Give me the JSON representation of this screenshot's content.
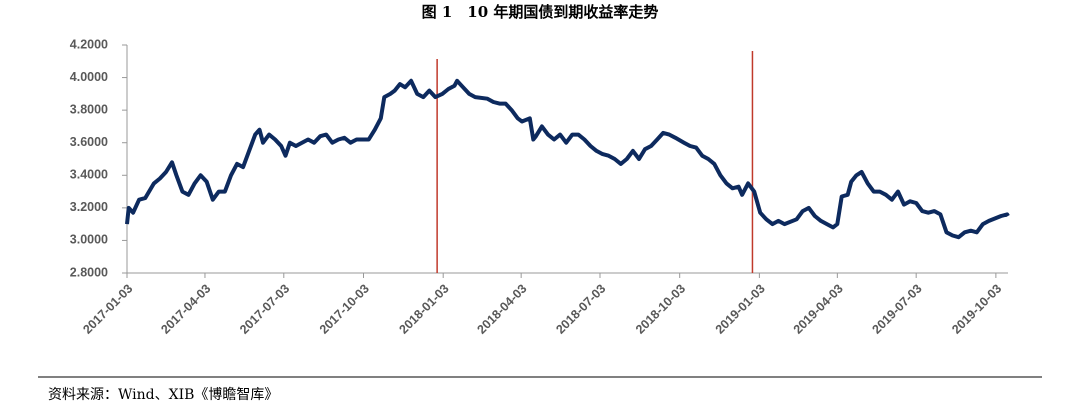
{
  "chart_data": {
    "type": "line",
    "title": "图 1　10 年期国债到期收益率走势",
    "source": "资料来源：Wind、XIB《博瞻智库》",
    "x": [
      "2017-01-03",
      "2017-01-05",
      "2017-01-10",
      "2017-01-17",
      "2017-01-24",
      "2017-02-03",
      "2017-02-10",
      "2017-02-17",
      "2017-02-24",
      "2017-03-01",
      "2017-03-08",
      "2017-03-15",
      "2017-03-22",
      "2017-03-29",
      "2017-04-05",
      "2017-04-12",
      "2017-04-19",
      "2017-04-26",
      "2017-05-03",
      "2017-05-10",
      "2017-05-17",
      "2017-05-24",
      "2017-05-31",
      "2017-06-05",
      "2017-06-09",
      "2017-06-16",
      "2017-06-23",
      "2017-06-30",
      "2017-07-05",
      "2017-07-10",
      "2017-07-17",
      "2017-07-24",
      "2017-07-31",
      "2017-08-07",
      "2017-08-14",
      "2017-08-21",
      "2017-08-28",
      "2017-09-04",
      "2017-09-11",
      "2017-09-18",
      "2017-09-25",
      "2017-10-09",
      "2017-10-16",
      "2017-10-23",
      "2017-10-27",
      "2017-11-03",
      "2017-11-08",
      "2017-11-14",
      "2017-11-20",
      "2017-11-27",
      "2017-12-04",
      "2017-12-11",
      "2017-12-18",
      "2017-12-25",
      "2018-01-02",
      "2018-01-09",
      "2018-01-16",
      "2018-01-19",
      "2018-01-26",
      "2018-02-02",
      "2018-02-09",
      "2018-02-23",
      "2018-03-02",
      "2018-03-09",
      "2018-03-16",
      "2018-03-23",
      "2018-03-30",
      "2018-04-04",
      "2018-04-13",
      "2018-04-17",
      "2018-04-20",
      "2018-04-27",
      "2018-05-04",
      "2018-05-11",
      "2018-05-18",
      "2018-05-25",
      "2018-06-01",
      "2018-06-08",
      "2018-06-15",
      "2018-06-22",
      "2018-06-29",
      "2018-07-06",
      "2018-07-13",
      "2018-07-20",
      "2018-07-27",
      "2018-08-03",
      "2018-08-10",
      "2018-08-17",
      "2018-08-24",
      "2018-08-31",
      "2018-09-07",
      "2018-09-14",
      "2018-09-21",
      "2018-09-28",
      "2018-10-08",
      "2018-10-15",
      "2018-10-22",
      "2018-10-29",
      "2018-11-05",
      "2018-11-12",
      "2018-11-19",
      "2018-11-26",
      "2018-12-03",
      "2018-12-10",
      "2018-12-14",
      "2018-12-21",
      "2018-12-28",
      "2019-01-04",
      "2019-01-11",
      "2019-01-18",
      "2019-01-25",
      "2019-02-01",
      "2019-02-15",
      "2019-02-22",
      "2019-03-01",
      "2019-03-08",
      "2019-03-15",
      "2019-03-22",
      "2019-03-29",
      "2019-04-03",
      "2019-04-08",
      "2019-04-15",
      "2019-04-19",
      "2019-04-25",
      "2019-05-01",
      "2019-05-08",
      "2019-05-15",
      "2019-05-22",
      "2019-05-29",
      "2019-06-05",
      "2019-06-12",
      "2019-06-19",
      "2019-06-26",
      "2019-07-03",
      "2019-07-10",
      "2019-07-17",
      "2019-07-24",
      "2019-07-31",
      "2019-08-07",
      "2019-08-14",
      "2019-08-21",
      "2019-08-28",
      "2019-09-04",
      "2019-09-11",
      "2019-09-18",
      "2019-09-25",
      "2019-10-09",
      "2019-10-16",
      "2019-10-17"
    ],
    "series": [
      {
        "color": "#0d2a5e",
        "values": [
          3.1,
          3.2,
          3.17,
          3.25,
          3.26,
          3.35,
          3.38,
          3.42,
          3.48,
          3.4,
          3.3,
          3.28,
          3.35,
          3.4,
          3.36,
          3.25,
          3.3,
          3.3,
          3.4,
          3.47,
          3.45,
          3.55,
          3.65,
          3.68,
          3.6,
          3.65,
          3.62,
          3.58,
          3.52,
          3.6,
          3.58,
          3.6,
          3.62,
          3.6,
          3.64,
          3.65,
          3.6,
          3.62,
          3.63,
          3.6,
          3.62,
          3.62,
          3.68,
          3.75,
          3.88,
          3.9,
          3.92,
          3.96,
          3.94,
          3.98,
          3.9,
          3.88,
          3.92,
          3.88,
          3.9,
          3.93,
          3.95,
          3.98,
          3.94,
          3.9,
          3.88,
          3.87,
          3.85,
          3.84,
          3.84,
          3.8,
          3.75,
          3.73,
          3.75,
          3.62,
          3.64,
          3.7,
          3.65,
          3.62,
          3.65,
          3.6,
          3.65,
          3.65,
          3.62,
          3.58,
          3.55,
          3.53,
          3.52,
          3.5,
          3.47,
          3.5,
          3.55,
          3.5,
          3.56,
          3.58,
          3.62,
          3.66,
          3.65,
          3.63,
          3.6,
          3.58,
          3.57,
          3.52,
          3.5,
          3.47,
          3.4,
          3.35,
          3.32,
          3.33,
          3.28,
          3.35,
          3.3,
          3.17,
          3.13,
          3.1,
          3.12,
          3.1,
          3.13,
          3.18,
          3.2,
          3.15,
          3.12,
          3.1,
          3.08,
          3.1,
          3.27,
          3.28,
          3.36,
          3.4,
          3.42,
          3.35,
          3.3,
          3.3,
          3.28,
          3.25,
          3.3,
          3.22,
          3.24,
          3.23,
          3.18,
          3.17,
          3.18,
          3.16,
          3.05,
          3.03,
          3.02,
          3.05,
          3.06,
          3.05,
          3.1,
          3.12,
          3.15,
          3.16,
          3.15
        ]
      }
    ],
    "xlim": [
      "2017-01-03",
      "2019-10-17"
    ],
    "xticks": [
      "2017-01-03",
      "2017-04-03",
      "2017-07-03",
      "2017-10-03",
      "2018-01-03",
      "2018-04-03",
      "2018-07-03",
      "2018-10-03",
      "2019-01-03",
      "2019-04-03",
      "2019-07-03",
      "2019-10-03"
    ],
    "ylim": [
      2.8,
      4.2
    ],
    "yticks": [
      {
        "value": 2.8,
        "label": "2.8000"
      },
      {
        "value": 3.0,
        "label": "3.0000"
      },
      {
        "value": 3.2,
        "label": "3.2000"
      },
      {
        "value": 3.4,
        "label": "3.4000"
      },
      {
        "value": 3.6,
        "label": "3.6000"
      },
      {
        "value": 3.8,
        "label": "3.8000"
      },
      {
        "value": 4.0,
        "label": "4.0000"
      },
      {
        "value": 4.2,
        "label": "4.2000"
      }
    ],
    "vlines": {
      "color": "#c0392b",
      "x": [
        "2017-12-27",
        "2018-12-26"
      ]
    }
  }
}
